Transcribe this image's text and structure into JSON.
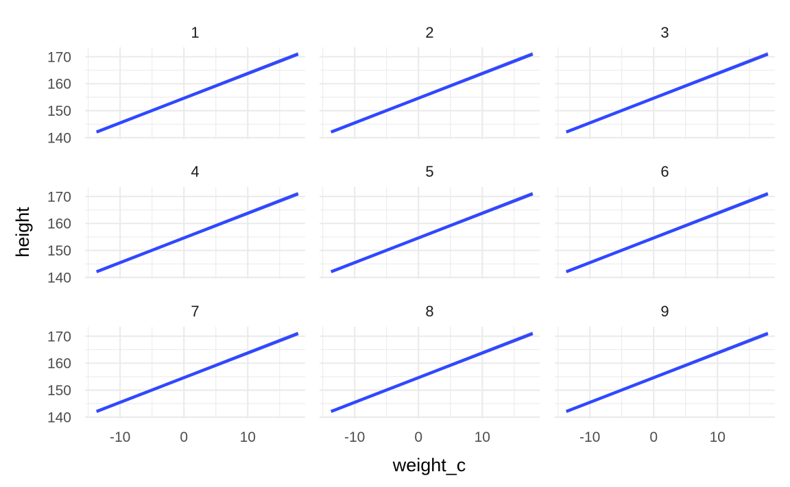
{
  "chart_data": {
    "type": "line",
    "facet_labels": [
      "1",
      "2",
      "3",
      "4",
      "5",
      "6",
      "7",
      "8",
      "9"
    ],
    "xlabel": "weight_c",
    "ylabel": "height",
    "xlim": [
      -15.5,
      19
    ],
    "ylim": [
      139.5,
      173.5
    ],
    "x_ticks": [
      -10,
      0,
      10
    ],
    "y_ticks": [
      140,
      150,
      160,
      170
    ],
    "grid": true,
    "line_color": "#3048ff",
    "ribbon_color": "#bdbdbd",
    "panels": [
      {
        "label": "1",
        "x": [
          -13.7,
          17.9
        ],
        "y": [
          142.1,
          171.0
        ],
        "lower": [
          141.7,
          170.2
        ],
        "upper": [
          142.5,
          171.8
        ]
      },
      {
        "label": "2",
        "x": [
          -13.7,
          17.9
        ],
        "y": [
          142.1,
          171.0
        ],
        "lower": [
          141.7,
          170.2
        ],
        "upper": [
          142.5,
          171.8
        ]
      },
      {
        "label": "3",
        "x": [
          -13.7,
          17.9
        ],
        "y": [
          142.1,
          171.0
        ],
        "lower": [
          141.7,
          170.2
        ],
        "upper": [
          142.5,
          171.8
        ]
      },
      {
        "label": "4",
        "x": [
          -13.7,
          17.9
        ],
        "y": [
          142.1,
          171.0
        ],
        "lower": [
          141.7,
          170.2
        ],
        "upper": [
          142.5,
          171.8
        ]
      },
      {
        "label": "5",
        "x": [
          -13.7,
          17.9
        ],
        "y": [
          142.1,
          171.0
        ],
        "lower": [
          141.7,
          170.2
        ],
        "upper": [
          142.5,
          171.8
        ]
      },
      {
        "label": "6",
        "x": [
          -13.7,
          17.9
        ],
        "y": [
          142.1,
          171.0
        ],
        "lower": [
          141.7,
          170.2
        ],
        "upper": [
          142.5,
          171.8
        ]
      },
      {
        "label": "7",
        "x": [
          -13.7,
          17.9
        ],
        "y": [
          142.1,
          171.0
        ],
        "lower": [
          141.7,
          170.2
        ],
        "upper": [
          142.5,
          171.8
        ]
      },
      {
        "label": "8",
        "x": [
          -13.7,
          17.9
        ],
        "y": [
          142.1,
          171.0
        ],
        "lower": [
          141.7,
          170.2
        ],
        "upper": [
          142.5,
          171.8
        ]
      },
      {
        "label": "9",
        "x": [
          -13.7,
          17.9
        ],
        "y": [
          142.1,
          171.0
        ],
        "lower": [
          141.7,
          170.2
        ],
        "upper": [
          142.5,
          171.8
        ]
      }
    ]
  }
}
